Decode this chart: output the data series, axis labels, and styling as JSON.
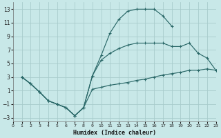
{
  "xlabel": "Humidex (Indice chaleur)",
  "xlim": [
    0,
    23
  ],
  "ylim": [
    -3.5,
    14
  ],
  "yticks": [
    -3,
    -1,
    1,
    3,
    5,
    7,
    9,
    11,
    13
  ],
  "xticks": [
    0,
    1,
    2,
    3,
    4,
    5,
    6,
    7,
    8,
    9,
    10,
    11,
    12,
    13,
    14,
    15,
    16,
    17,
    18,
    19,
    20,
    21,
    22,
    23
  ],
  "bg_color": "#c8e8e8",
  "grid_color": "#a8cccc",
  "line_color": "#2a6868",
  "line1_x": [
    1,
    2,
    3,
    4,
    5,
    6,
    7,
    8,
    9,
    10,
    11,
    12,
    13,
    14,
    15,
    16,
    17,
    18
  ],
  "line1_y": [
    3.0,
    2.0,
    0.8,
    -0.5,
    -1.0,
    -1.5,
    -2.7,
    -1.5,
    3.2,
    6.2,
    9.5,
    11.5,
    12.7,
    13.0,
    13.0,
    13.0,
    12.0,
    10.5
  ],
  "line2_x": [
    1,
    2,
    3,
    4,
    5,
    6,
    7,
    8,
    9,
    10,
    11,
    12,
    13,
    14,
    15,
    16,
    17,
    18,
    19,
    20,
    21,
    22,
    23
  ],
  "line2_y": [
    3.0,
    2.0,
    0.8,
    -0.5,
    -1.0,
    -1.5,
    -2.7,
    -1.5,
    3.2,
    5.5,
    6.5,
    7.2,
    7.7,
    8.0,
    8.0,
    8.0,
    8.0,
    7.5,
    7.5,
    8.0,
    6.5,
    5.8,
    4.0
  ],
  "line3_x": [
    1,
    2,
    3,
    4,
    5,
    6,
    7,
    8,
    9,
    10,
    11,
    12,
    13,
    14,
    15,
    16,
    17,
    18,
    19,
    20,
    21,
    22,
    23
  ],
  "line3_y": [
    3.0,
    2.0,
    0.8,
    -0.5,
    -1.0,
    -1.5,
    -2.7,
    -1.5,
    1.2,
    1.5,
    1.8,
    2.0,
    2.2,
    2.5,
    2.7,
    3.0,
    3.3,
    3.5,
    3.7,
    4.0,
    4.0,
    4.2,
    4.0
  ]
}
